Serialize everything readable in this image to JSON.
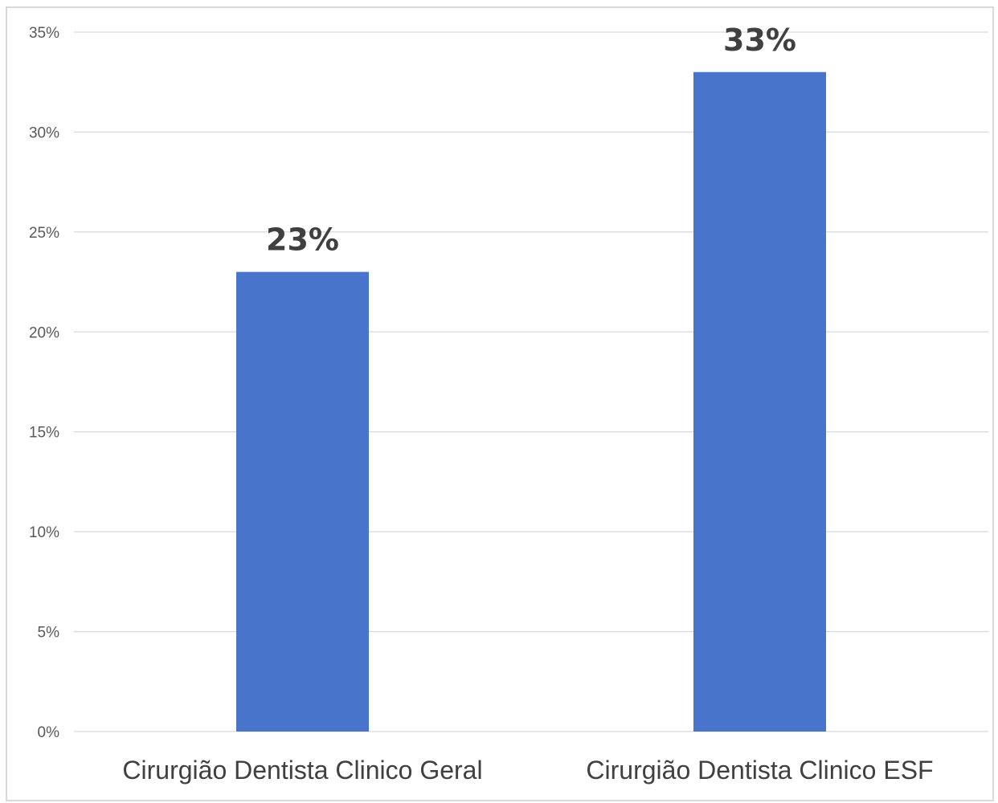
{
  "chart_data": {
    "type": "bar",
    "categories": [
      "Cirurgião Dentista Clinico Geral",
      "Cirurgião Dentista Clinico ESF"
    ],
    "values": [
      23,
      33
    ],
    "data_labels": [
      "23%",
      "33%"
    ],
    "ylim": [
      0,
      35
    ],
    "y_ticks": [
      0,
      5,
      10,
      15,
      20,
      25,
      30,
      35
    ],
    "y_tick_labels": [
      "0%",
      "5%",
      "10%",
      "15%",
      "20%",
      "25%",
      "30%",
      "35%"
    ],
    "grid": true,
    "legend": "none",
    "colors": {
      "bar": "#4874CB"
    }
  }
}
